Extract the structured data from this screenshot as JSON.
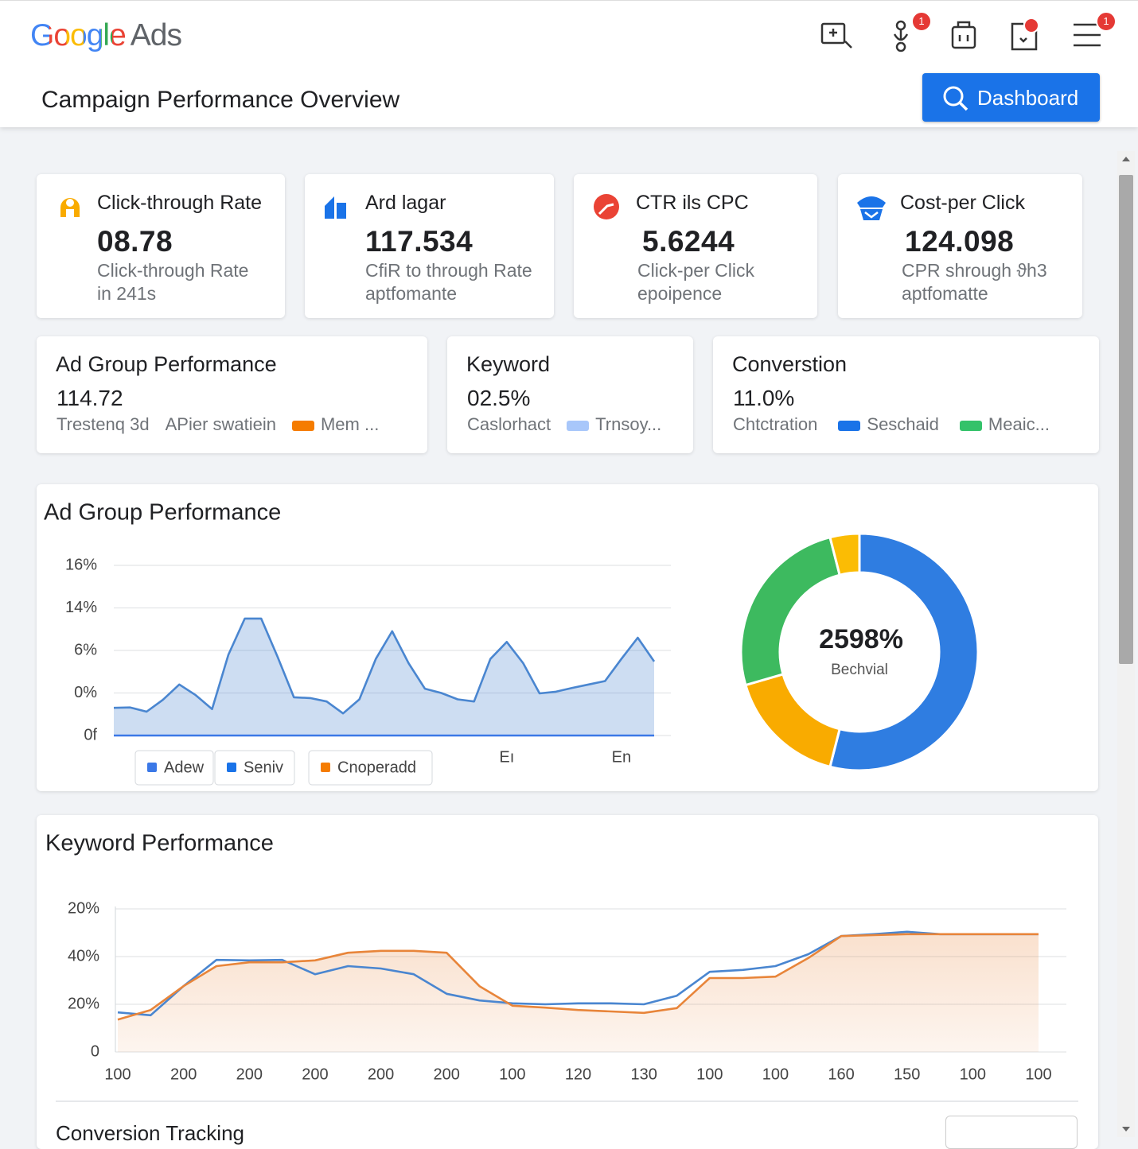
{
  "header": {
    "logo": "Google",
    "logo_suffix": "Ads",
    "title": "Campaign Performance Overview",
    "button": "Dashboard",
    "badges": [
      "1",
      "1"
    ]
  },
  "kpis": [
    {
      "title": "Click-through Rate",
      "value": "08.78",
      "subtitle": [
        "Click-through Rate",
        "in 241s"
      ]
    },
    {
      "title": "Ard lagar",
      "value": "117.534",
      "subtitle": [
        "CfiR to through Rate",
        "aptfomante"
      ]
    },
    {
      "title": "CTR ils CPC",
      "value": "5.6244",
      "subtitle": [
        "Click-per Click",
        "epoipence"
      ]
    },
    {
      "title": "Cost-per Click",
      "value": "124.098",
      "subtitle": [
        "CPR shrough ϑh3",
        "aptfomatte"
      ]
    }
  ],
  "summaries": [
    {
      "title": "Ad Group Performance",
      "value": "114.72",
      "items": [
        {
          "text": "Trestenq 3d"
        },
        {
          "text": "APier swatiein"
        },
        {
          "text": "Mem ...",
          "color": "#f57c00"
        }
      ]
    },
    {
      "title": "Keyword",
      "value": "02.5%",
      "items": [
        {
          "text": "Caslorhact"
        },
        {
          "text": "Trnsoy...",
          "color": "#a8c7fa"
        }
      ]
    },
    {
      "title": "Converstion",
      "value": "11.0%",
      "items": [
        {
          "text": "Chtctration"
        },
        {
          "text": "Seschaid",
          "color": "#1a73e8"
        },
        {
          "text": "Meaic...",
          "color": "#34c26a"
        }
      ]
    }
  ],
  "chart_data": [
    {
      "type": "area",
      "title": "Ad Group Performance",
      "color": "#4a86d0",
      "grid": true,
      "ylim": [
        0,
        4
      ],
      "yticks": [
        {
          "value": 0,
          "label": "0f"
        },
        {
          "value": 1,
          "label": "0%"
        },
        {
          "value": 2,
          "label": "6%"
        },
        {
          "value": 3,
          "label": "14%"
        },
        {
          "value": 4,
          "label": "16%"
        }
      ],
      "categories": [
        null,
        null,
        null,
        null,
        null,
        null,
        null,
        null,
        null,
        null,
        null,
        null,
        null,
        null,
        null,
        null,
        null,
        null,
        null,
        null,
        null,
        null,
        null,
        null,
        "Eı",
        null,
        null,
        null,
        null,
        null,
        null,
        "En",
        null,
        null
      ],
      "values": [
        0.65,
        0.66,
        0.56,
        0.84,
        1.2,
        0.95,
        0.62,
        1.9,
        2.75,
        2.75,
        1.85,
        0.9,
        0.88,
        0.8,
        0.52,
        0.85,
        1.8,
        2.45,
        1.7,
        1.1,
        1.0,
        0.85,
        0.8,
        1.8,
        2.2,
        1.7,
        0.99,
        1.03,
        1.12,
        1.2,
        1.28,
        1.8,
        2.3,
        1.74
      ],
      "legend": [
        {
          "text": "Adew",
          "color": "#3b78e7"
        },
        {
          "text": "Seniv",
          "color": "#1a73e8"
        },
        {
          "text": "Cnoperadd",
          "color": "#f57c00"
        }
      ]
    },
    {
      "type": "pie",
      "center_value": "2598%",
      "center_label": "Bechvial",
      "values": [
        54,
        16.5,
        25.5,
        4
      ],
      "colors": [
        "#2f7de1",
        "#f9ab00",
        "#3dba5f",
        "#fbbc04"
      ]
    },
    {
      "type": "line",
      "title": "Keyword Performance",
      "grid": true,
      "ylim": [
        0,
        3
      ],
      "yticks": [
        0,
        {
          "value": 1,
          "label": "20%"
        },
        {
          "value": 2,
          "label": "40%"
        },
        {
          "value": 3,
          "label": "20%"
        }
      ],
      "categories": [
        "100",
        null,
        "200",
        null,
        "200",
        null,
        "200",
        null,
        "200",
        null,
        "200",
        null,
        "100",
        null,
        "120",
        null,
        "130",
        null,
        "100",
        null,
        "100",
        null,
        "160",
        null,
        "150",
        null,
        "100",
        null,
        "100"
      ],
      "series": [
        {
          "color": "#4a86d0",
          "values": [
            0.83,
            0.77,
            1.38,
            1.93,
            1.92,
            1.93,
            1.63,
            1.8,
            1.75,
            1.63,
            1.22,
            1.08,
            1.02,
            1.0,
            1.02,
            1.02,
            1.0,
            1.18,
            1.68,
            1.72,
            1.8,
            2.05,
            2.43,
            2.47,
            2.52,
            2.47,
            2.47,
            2.47,
            2.47
          ]
        },
        {
          "color": "#e8853a",
          "area": true,
          "values": [
            0.68,
            0.88,
            1.38,
            1.8,
            1.88,
            1.88,
            1.92,
            2.08,
            2.12,
            2.12,
            2.08,
            1.38,
            0.97,
            0.93,
            0.88,
            0.85,
            0.82,
            0.92,
            1.55,
            1.55,
            1.58,
            1.97,
            2.43,
            2.45,
            2.47,
            2.47,
            2.47,
            2.47,
            2.47
          ]
        }
      ]
    }
  ],
  "footer": {
    "title": "Conversion Tracking"
  }
}
